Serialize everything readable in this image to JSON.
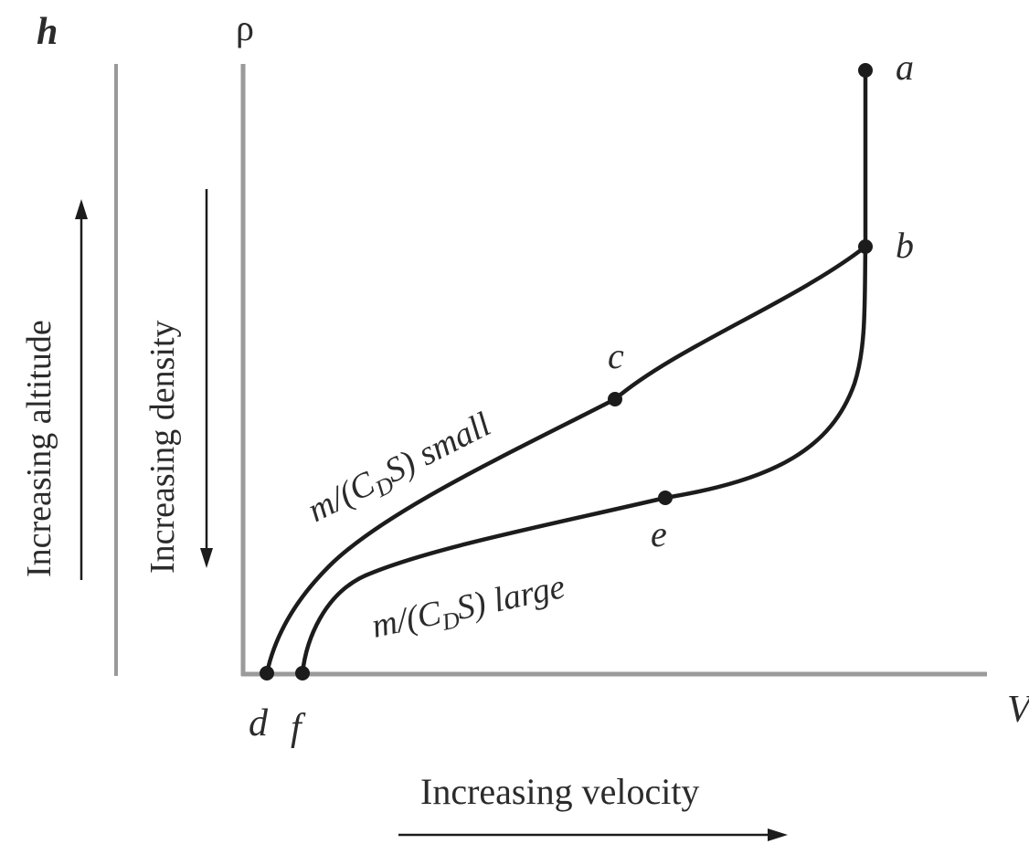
{
  "axes": {
    "h_label": "h",
    "rho_label": "ρ",
    "v_label": "V"
  },
  "side_labels": {
    "altitude": "Increasing altitude",
    "density": "Increasing density",
    "velocity": "Increasing velocity"
  },
  "points": {
    "a": "a",
    "b": "b",
    "c": "c",
    "d": "d",
    "e": "e",
    "f": "f"
  },
  "curves": {
    "small_label": {
      "prefix": "m/(C",
      "subscript": "D",
      "suffix_s": "S",
      "suffix_rest": ") small"
    },
    "large_label": {
      "prefix": "m/(C",
      "subscript": "D",
      "suffix_s": "S",
      "suffix_rest": ") large"
    }
  },
  "colors": {
    "axis": "#9a9a9a",
    "curve": "#1c1c1c",
    "text": "#2b2b2b"
  }
}
